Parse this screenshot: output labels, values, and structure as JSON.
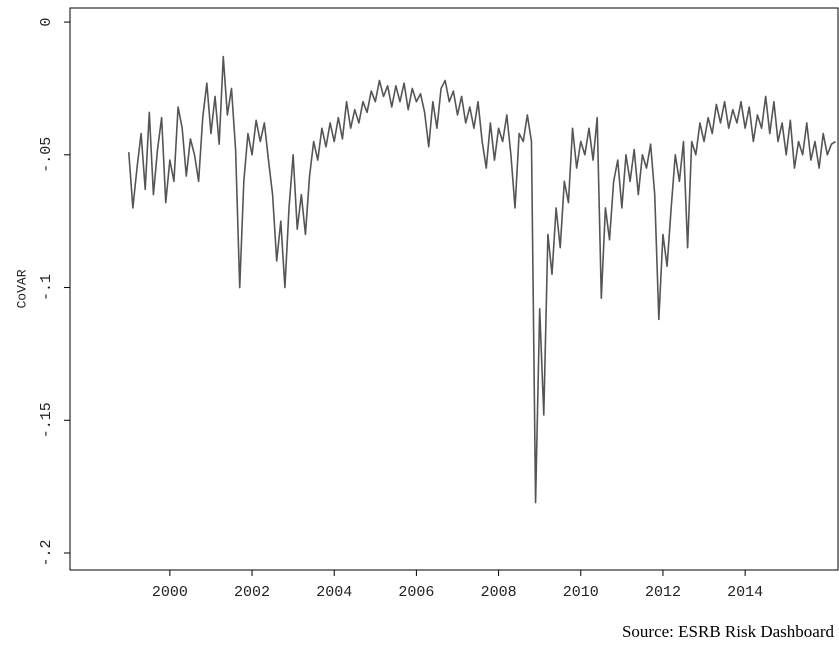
{
  "chart_data": {
    "type": "line",
    "ylabel": "CoVAR",
    "source": "Source: ESRB Risk Dashboard",
    "xlim": [
      1997.57,
      2016.26
    ],
    "xticks": [
      2000,
      2002,
      2004,
      2006,
      2008,
      2010,
      2012,
      2014
    ],
    "ylim": [
      -0.2064,
      0.0053
    ],
    "yticks": [
      0,
      {
        "value": -0.05,
        "label": "-.05"
      },
      {
        "value": -0.1,
        "label": "-.1"
      },
      {
        "value": -0.15,
        "label": "-.15"
      },
      {
        "value": -0.2,
        "label": "-.2"
      }
    ],
    "grid": false,
    "series": [
      {
        "color": "#555555",
        "x": [
          1999.0,
          1999.1,
          1999.2,
          1999.3,
          1999.4,
          1999.5,
          1999.6,
          1999.7,
          1999.8,
          1999.9,
          2000.0,
          2000.1,
          2000.2,
          2000.3,
          2000.4,
          2000.5,
          2000.6,
          2000.7,
          2000.8,
          2000.9,
          2001.0,
          2001.1,
          2001.2,
          2001.3,
          2001.4,
          2001.5,
          2001.6,
          2001.7,
          2001.8,
          2001.9,
          2002.0,
          2002.1,
          2002.2,
          2002.3,
          2002.4,
          2002.5,
          2002.6,
          2002.7,
          2002.8,
          2002.9,
          2003.0,
          2003.1,
          2003.2,
          2003.3,
          2003.4,
          2003.5,
          2003.6,
          2003.7,
          2003.8,
          2003.9,
          2004.0,
          2004.1,
          2004.2,
          2004.3,
          2004.4,
          2004.5,
          2004.6,
          2004.7,
          2004.8,
          2004.9,
          2005.0,
          2005.1,
          2005.2,
          2005.3,
          2005.4,
          2005.5,
          2005.6,
          2005.7,
          2005.8,
          2005.9,
          2006.0,
          2006.1,
          2006.2,
          2006.3,
          2006.4,
          2006.5,
          2006.6,
          2006.7,
          2006.8,
          2006.9,
          2007.0,
          2007.1,
          2007.2,
          2007.3,
          2007.4,
          2007.5,
          2007.6,
          2007.7,
          2007.8,
          2007.9,
          2008.0,
          2008.1,
          2008.2,
          2008.3,
          2008.4,
          2008.5,
          2008.6,
          2008.7,
          2008.8,
          2008.9,
          2009.0,
          2009.1,
          2009.2,
          2009.3,
          2009.4,
          2009.5,
          2009.6,
          2009.7,
          2009.8,
          2009.9,
          2010.0,
          2010.1,
          2010.2,
          2010.3,
          2010.4,
          2010.5,
          2010.6,
          2010.7,
          2010.8,
          2010.9,
          2011.0,
          2011.1,
          2011.2,
          2011.3,
          2011.4,
          2011.5,
          2011.6,
          2011.7,
          2011.8,
          2011.9,
          2012.0,
          2012.1,
          2012.2,
          2012.3,
          2012.4,
          2012.5,
          2012.6,
          2012.7,
          2012.8,
          2012.9,
          2013.0,
          2013.1,
          2013.2,
          2013.3,
          2013.4,
          2013.5,
          2013.6,
          2013.7,
          2013.8,
          2013.9,
          2014.0,
          2014.1,
          2014.2,
          2014.3,
          2014.4,
          2014.5,
          2014.6,
          2014.7,
          2014.8,
          2014.9,
          2015.0,
          2015.1,
          2015.2,
          2015.3,
          2015.4,
          2015.5,
          2015.6,
          2015.7,
          2015.8,
          2015.9,
          2016.0,
          2016.1,
          2016.2
        ],
        "values": [
          -0.049,
          -0.07,
          -0.055,
          -0.042,
          -0.063,
          -0.034,
          -0.065,
          -0.048,
          -0.036,
          -0.068,
          -0.052,
          -0.06,
          -0.032,
          -0.04,
          -0.058,
          -0.044,
          -0.05,
          -0.06,
          -0.036,
          -0.023,
          -0.042,
          -0.028,
          -0.046,
          -0.013,
          -0.035,
          -0.025,
          -0.048,
          -0.1,
          -0.06,
          -0.042,
          -0.05,
          -0.037,
          -0.045,
          -0.038,
          -0.052,
          -0.065,
          -0.09,
          -0.075,
          -0.1,
          -0.07,
          -0.05,
          -0.078,
          -0.065,
          -0.08,
          -0.058,
          -0.045,
          -0.052,
          -0.04,
          -0.047,
          -0.038,
          -0.045,
          -0.036,
          -0.044,
          -0.03,
          -0.04,
          -0.033,
          -0.038,
          -0.03,
          -0.034,
          -0.026,
          -0.03,
          -0.022,
          -0.028,
          -0.024,
          -0.032,
          -0.024,
          -0.03,
          -0.023,
          -0.033,
          -0.025,
          -0.03,
          -0.027,
          -0.034,
          -0.047,
          -0.03,
          -0.04,
          -0.025,
          -0.022,
          -0.03,
          -0.026,
          -0.035,
          -0.028,
          -0.038,
          -0.032,
          -0.04,
          -0.03,
          -0.045,
          -0.055,
          -0.038,
          -0.052,
          -0.04,
          -0.045,
          -0.035,
          -0.05,
          -0.07,
          -0.042,
          -0.045,
          -0.035,
          -0.045,
          -0.181,
          -0.108,
          -0.148,
          -0.08,
          -0.095,
          -0.07,
          -0.085,
          -0.06,
          -0.068,
          -0.04,
          -0.055,
          -0.045,
          -0.05,
          -0.04,
          -0.052,
          -0.036,
          -0.104,
          -0.07,
          -0.082,
          -0.06,
          -0.052,
          -0.07,
          -0.05,
          -0.06,
          -0.048,
          -0.065,
          -0.05,
          -0.055,
          -0.046,
          -0.065,
          -0.112,
          -0.08,
          -0.092,
          -0.07,
          -0.05,
          -0.06,
          -0.045,
          -0.085,
          -0.045,
          -0.05,
          -0.038,
          -0.045,
          -0.036,
          -0.042,
          -0.031,
          -0.038,
          -0.03,
          -0.04,
          -0.033,
          -0.038,
          -0.03,
          -0.04,
          -0.032,
          -0.045,
          -0.035,
          -0.04,
          -0.028,
          -0.042,
          -0.03,
          -0.045,
          -0.038,
          -0.05,
          -0.037,
          -0.055,
          -0.045,
          -0.05,
          -0.038,
          -0.052,
          -0.045,
          -0.055,
          -0.042,
          -0.05,
          -0.046,
          -0.045
        ]
      }
    ]
  }
}
